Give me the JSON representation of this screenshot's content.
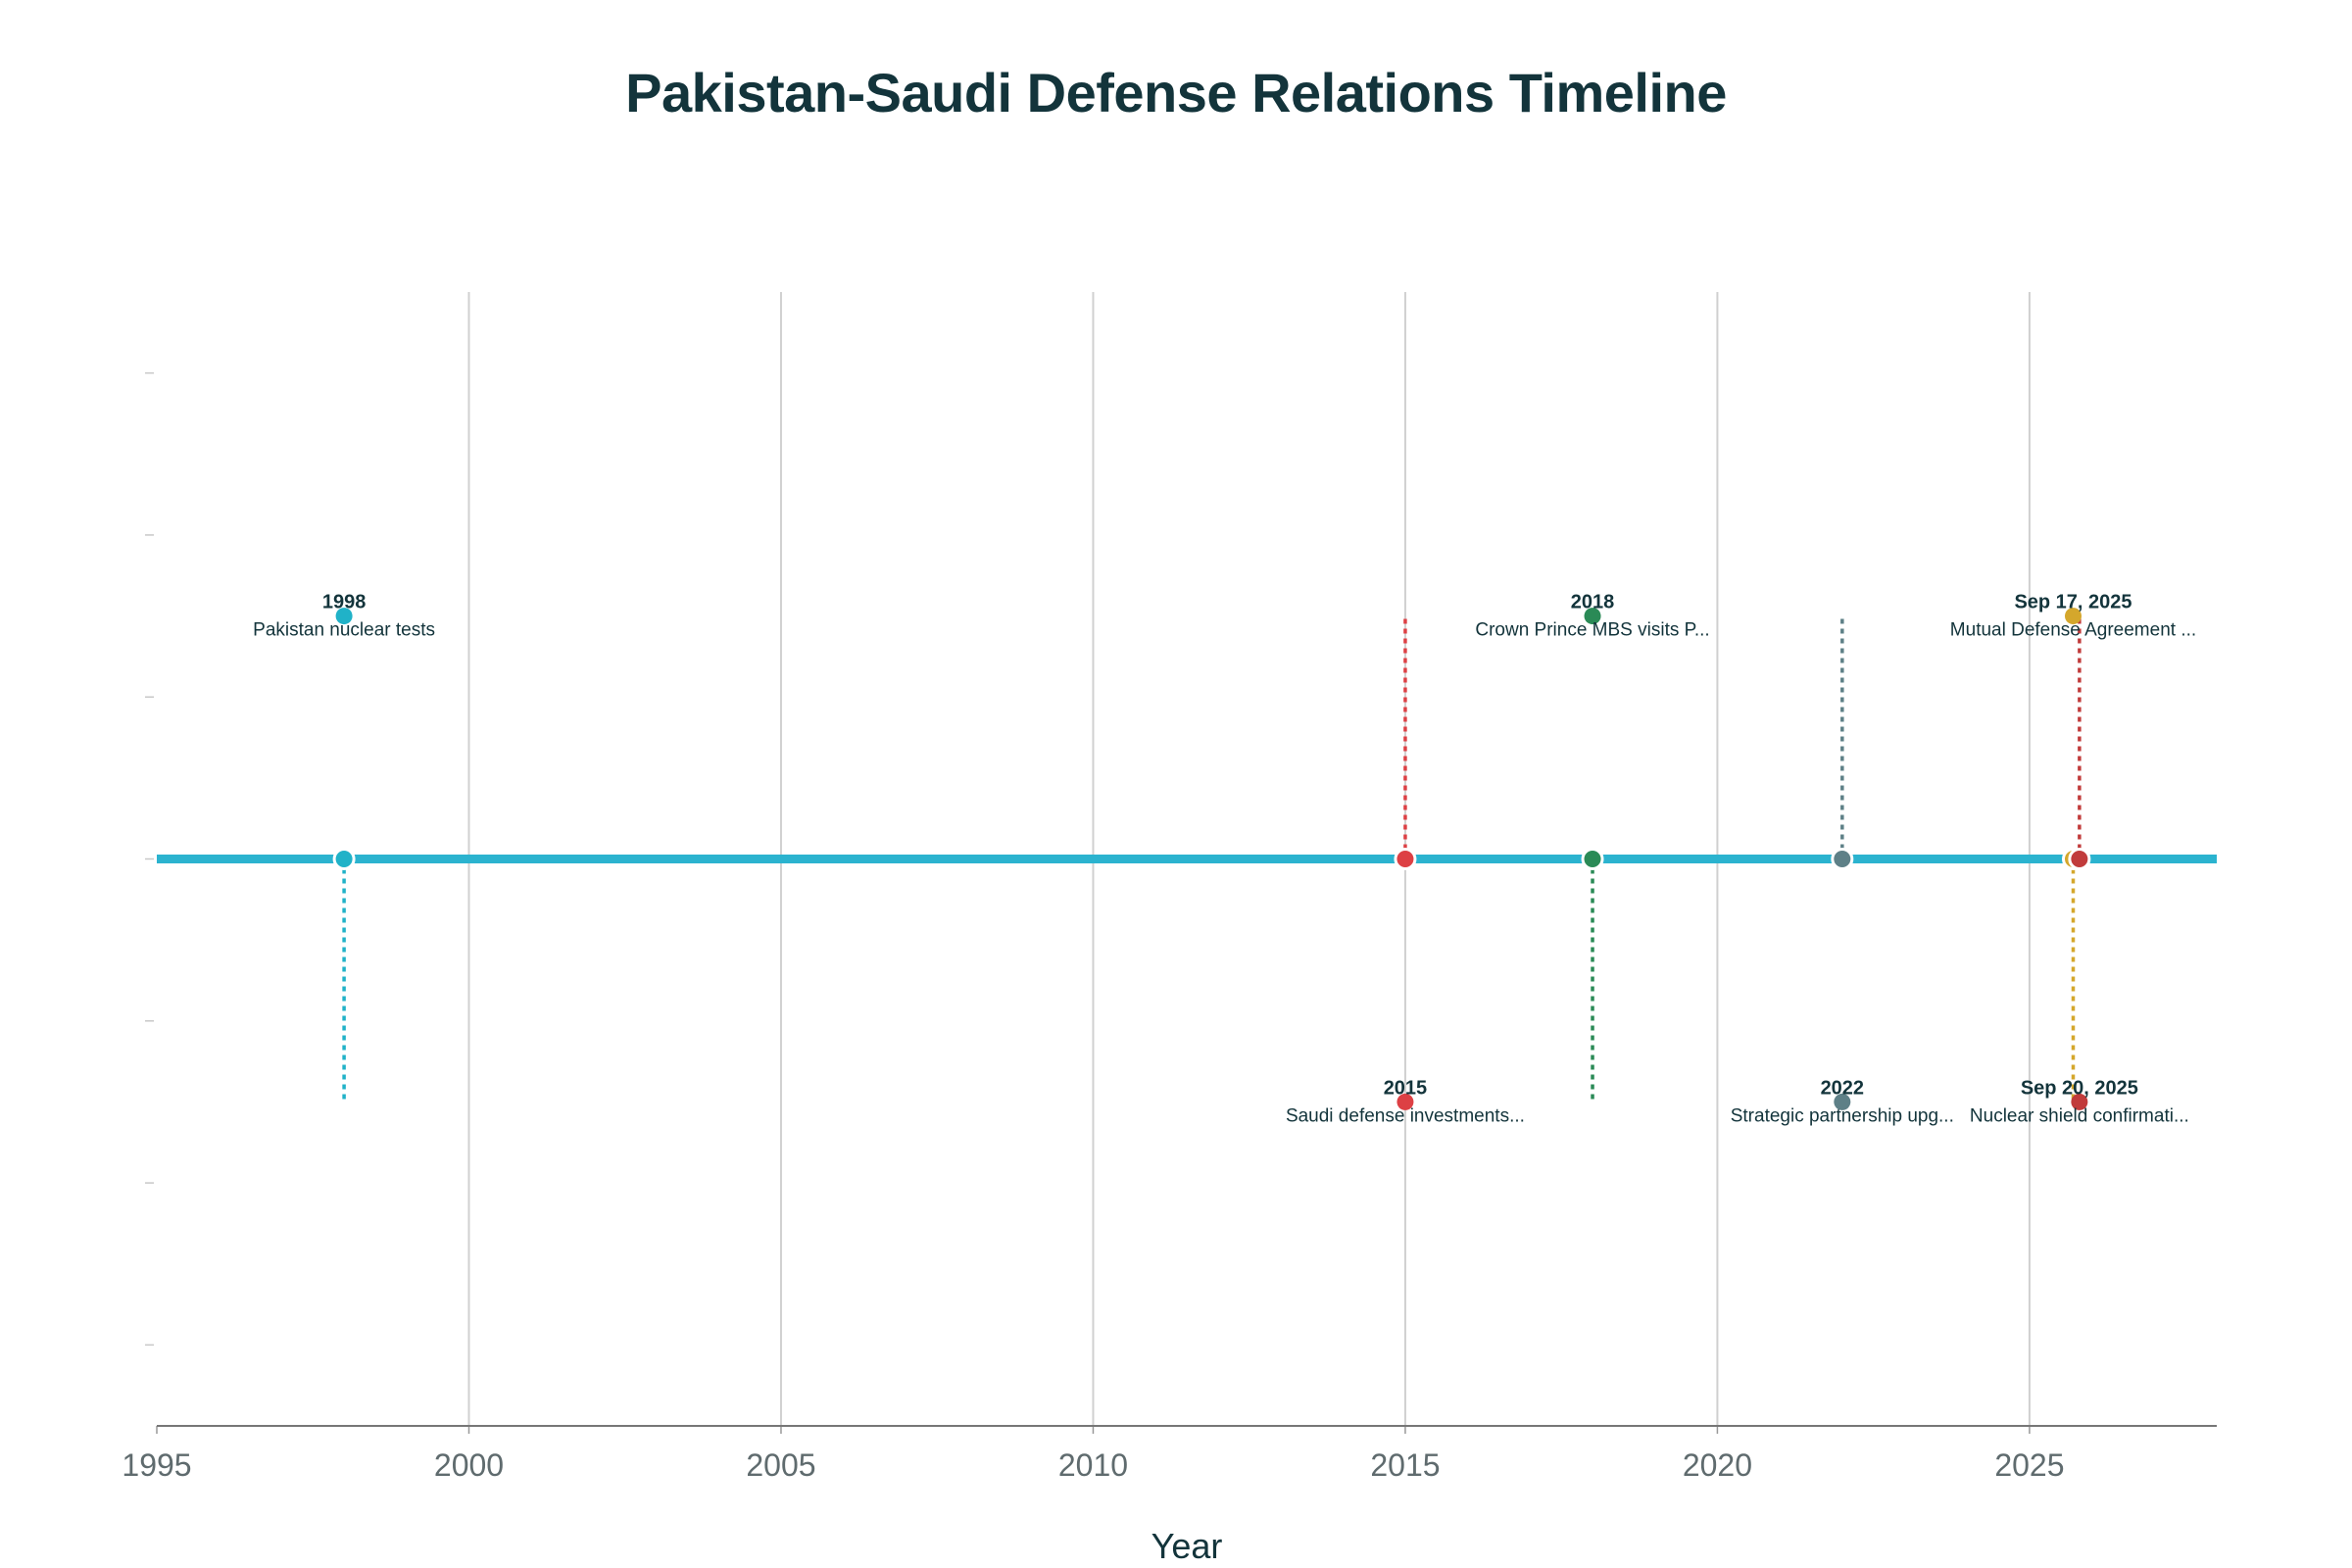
{
  "chart_data": {
    "type": "scatter",
    "title": "Pakistan-Saudi Defense Relations Timeline",
    "xlabel": "Year",
    "ylabel": "",
    "xlim": [
      1995,
      2028
    ],
    "ylim": [
      -3.5,
      3.5
    ],
    "x_ticks": [
      1995,
      2000,
      2005,
      2010,
      2015,
      2020,
      2025
    ],
    "y_ticks": [
      -3,
      -2,
      -1,
      0,
      1,
      2,
      3
    ],
    "grid": "vertical",
    "baseline_color": "#2bb3cf",
    "events": [
      {
        "x": 1998.0,
        "date_label": "1998",
        "description": "Pakistan nuclear tests",
        "side": 1.5,
        "color": "#20b2c8"
      },
      {
        "x": 2015.0,
        "date_label": "2015",
        "description": "Saudi defense investments...",
        "side": -1.5,
        "color": "#dd4044"
      },
      {
        "x": 2018.0,
        "date_label": "2018",
        "description": "Crown Prince MBS visits P...",
        "side": 1.5,
        "color": "#2a8a56"
      },
      {
        "x": 2022.0,
        "date_label": "2022",
        "description": "Strategic partnership upg...",
        "side": -1.5,
        "color": "#5e8087"
      },
      {
        "x": 2025.7,
        "date_label": "Sep 17, 2025",
        "description": "Mutual Defense Agreement ...",
        "side": 1.5,
        "color": "#d4a72c"
      },
      {
        "x": 2025.8,
        "date_label": "Sep 20, 2025",
        "description": "Nuclear shield confirmati...",
        "side": -1.5,
        "color": "#c13b3b"
      }
    ]
  }
}
